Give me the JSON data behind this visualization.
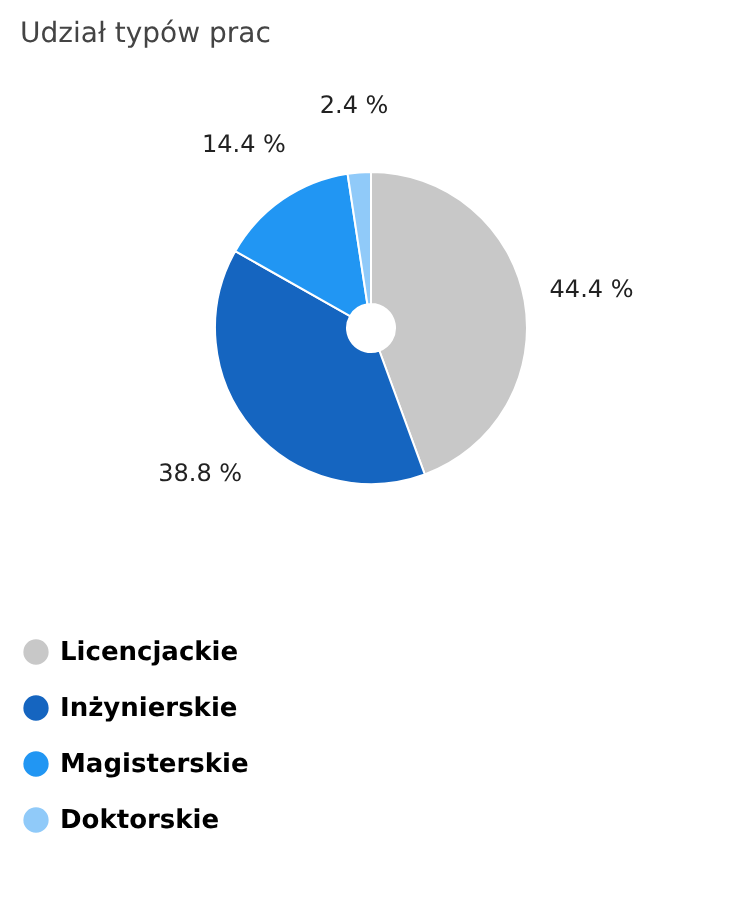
{
  "chart_data": {
    "type": "donut",
    "title": "Udział typów prac",
    "categories": [
      "Licencjackie",
      "Inżynierskie",
      "Magisterskie",
      "Doktorskie"
    ],
    "values": [
      44.4,
      38.8,
      14.4,
      2.4
    ],
    "colors": [
      "#c8c8c8",
      "#1565c0",
      "#2196f3",
      "#90caf9"
    ],
    "value_labels": [
      "44.4 %",
      "38.8 %",
      "14.4 %",
      "2.4 %"
    ],
    "legend": "bottom"
  }
}
